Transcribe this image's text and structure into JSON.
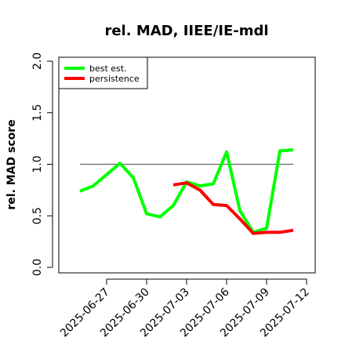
{
  "chart_data": {
    "type": "line",
    "title": "rel. MAD, IIEE/IE-mdl",
    "xlabel": "",
    "ylabel": "rel. MAD score",
    "ylim": [
      -0.05,
      2.05
    ],
    "yticks": [
      "0.0",
      "0.5",
      "1.0",
      "1.5",
      "2.0"
    ],
    "ytick_values": [
      0.0,
      0.5,
      1.0,
      1.5,
      2.0
    ],
    "xticks": [
      "2025-06-27",
      "2025-06-30",
      "2025-07-03",
      "2025-07-06",
      "2025-07-09",
      "2025-07-12"
    ],
    "x": [
      "2025-06-25",
      "2025-06-26",
      "2025-06-27",
      "2025-06-28",
      "2025-06-29",
      "2025-06-30",
      "2025-07-01",
      "2025-07-02",
      "2025-07-03",
      "2025-07-04",
      "2025-07-05",
      "2025-07-06",
      "2025-07-07",
      "2025-07-08",
      "2025-07-09",
      "2025-07-10",
      "2025-07-11",
      "2025-07-12"
    ],
    "reference_line": {
      "y": 1.0,
      "color": "#666666"
    },
    "legend_position": "top-left",
    "grid": false,
    "series": [
      {
        "name": "best est.",
        "color": "#00ff00",
        "values": [
          0.74,
          0.79,
          0.9,
          1.01,
          0.87,
          0.52,
          0.49,
          0.6,
          0.83,
          0.79,
          0.81,
          1.12,
          0.55,
          0.34,
          0.38,
          1.13,
          1.14,
          null
        ]
      },
      {
        "name": "persistence",
        "color": "#ff0000",
        "values": [
          null,
          null,
          null,
          null,
          null,
          null,
          null,
          0.8,
          0.82,
          0.75,
          0.61,
          0.6,
          0.47,
          0.33,
          0.34,
          0.34,
          0.36,
          null
        ]
      }
    ]
  }
}
